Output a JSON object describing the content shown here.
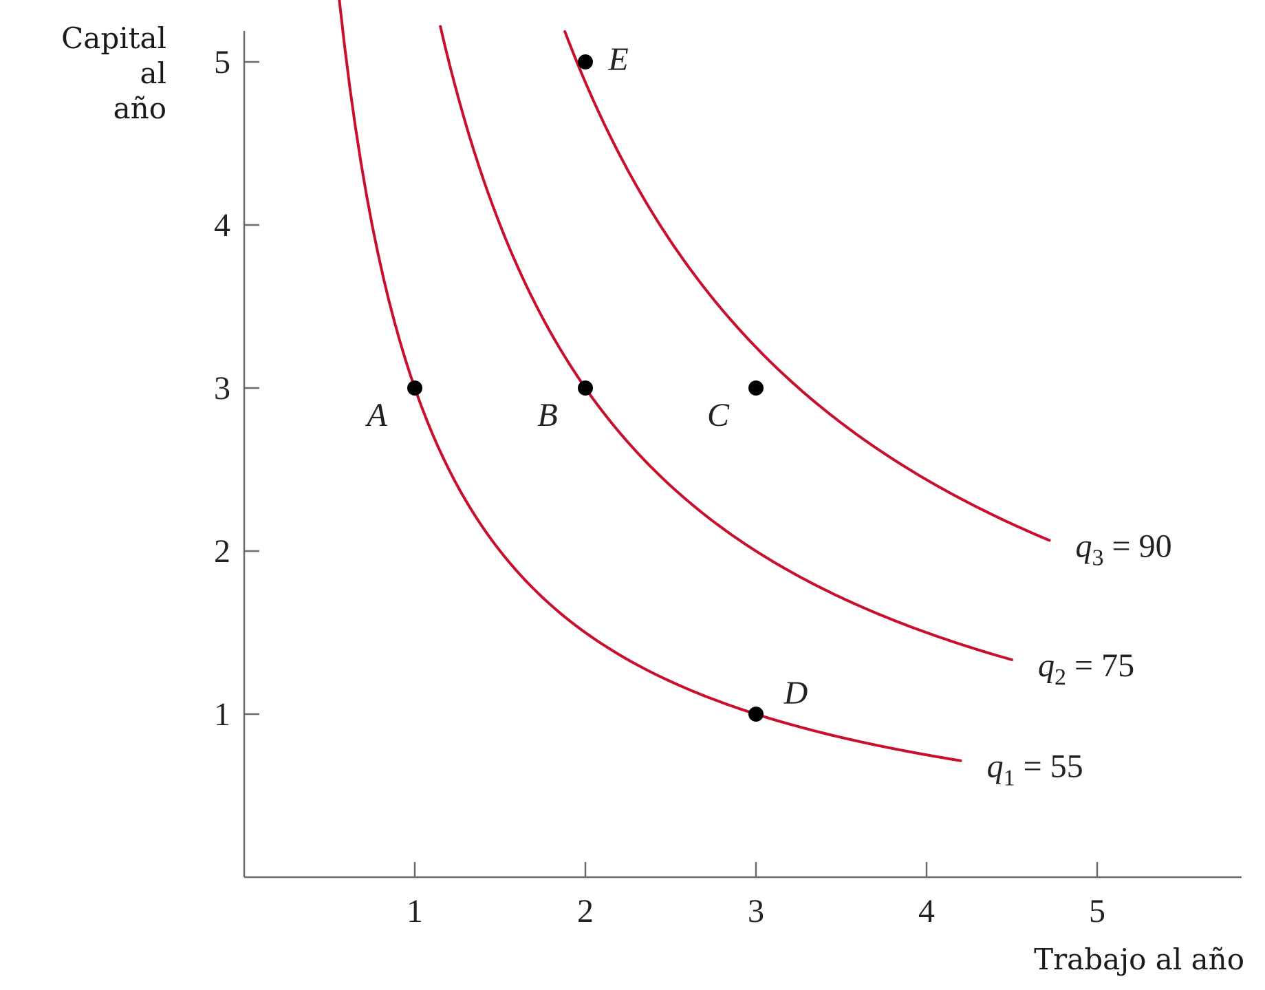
{
  "colors": {
    "curve": "#c8102e",
    "axis": "#6b6b6b",
    "point": "#000000",
    "text": "#222222"
  },
  "chart_data": {
    "type": "line",
    "title": "",
    "xlabel": "Trabajo al año",
    "ylabel_lines": [
      "Capital",
      "al",
      "año"
    ],
    "xlim": [
      0,
      5.9
    ],
    "ylim": [
      0,
      5.3
    ],
    "xticks": [
      "1",
      "2",
      "3",
      "4",
      "5"
    ],
    "yticks": [
      "1",
      "2",
      "3",
      "4",
      "5"
    ],
    "grid": false,
    "series": [
      {
        "name": "q1 = 55",
        "q": "q",
        "sub": "1",
        "value_text": " = 55",
        "k": 3.0,
        "x_range": [
          0.33,
          4.2
        ]
      },
      {
        "name": "q2 = 75",
        "q": "q",
        "sub": "2",
        "value_text": " = 75",
        "k": 6.0,
        "x_range": [
          1.15,
          4.5
        ]
      },
      {
        "name": "q3 = 90",
        "q": "q",
        "sub": "3",
        "value_text": " = 90",
        "k": 9.75,
        "x_range": [
          1.88,
          4.72
        ]
      }
    ],
    "points": [
      {
        "label": "A",
        "x": 1,
        "y": 3,
        "label_pos": "below-left"
      },
      {
        "label": "B",
        "x": 2,
        "y": 3,
        "label_pos": "below-left"
      },
      {
        "label": "C",
        "x": 3,
        "y": 3,
        "label_pos": "below-left"
      },
      {
        "label": "D",
        "x": 3,
        "y": 1,
        "label_pos": "above-right"
      },
      {
        "label": "E",
        "x": 2,
        "y": 5,
        "label_pos": "right"
      }
    ]
  }
}
